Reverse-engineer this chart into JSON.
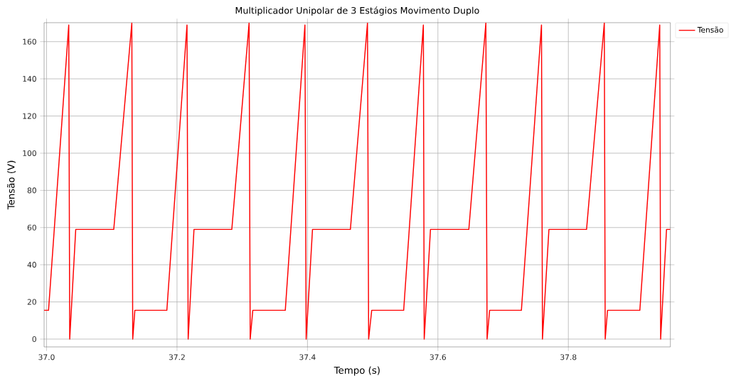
{
  "chart_data": {
    "type": "line",
    "title": "Multiplicador Unipolar de 3 Estágios Movimento Duplo",
    "xlabel": "Tempo (s)",
    "ylabel": "Tensão (V)",
    "x": [
      36.9962,
      37.003,
      37.034,
      37.0355,
      37.0447,
      37.103,
      37.1307,
      37.1321,
      37.1354,
      37.1844,
      37.2153,
      37.2171,
      37.226,
      37.284,
      37.3105,
      37.3122,
      37.3162,
      37.366,
      37.3961,
      37.398,
      37.4077,
      37.4658,
      37.492,
      37.4938,
      37.4985,
      37.5475,
      37.5777,
      37.579,
      37.5886,
      37.6474,
      37.6735,
      37.6754,
      37.6793,
      37.728,
      37.7588,
      37.7603,
      37.7702,
      37.8279,
      37.8551,
      37.8565,
      37.8601,
      37.9096,
      37.9401,
      37.9415,
      37.9505,
      37.9564
    ],
    "series": [
      {
        "name": "Tensão",
        "color": "#ff0000",
        "values": [
          15.5,
          15.5,
          169,
          0,
          59,
          59,
          170,
          0,
          15.5,
          15.5,
          169,
          0,
          59,
          59,
          170,
          0,
          15.5,
          15.5,
          169,
          0,
          59,
          59,
          170,
          0,
          15.5,
          15.5,
          169,
          0,
          59,
          59,
          170,
          0,
          15.5,
          15.5,
          169,
          0,
          59,
          59,
          170,
          0,
          15.5,
          15.5,
          169,
          0,
          59,
          59
        ]
      }
    ],
    "xlim": [
      36.9962,
      37.9564
    ],
    "ylim": [
      -4.2,
      170.2
    ],
    "xticks": [
      {
        "value": 37.0,
        "label": "37.0"
      },
      {
        "value": 37.2,
        "label": "37.2"
      },
      {
        "value": 37.4,
        "label": "37.4"
      },
      {
        "value": 37.6,
        "label": "37.6"
      },
      {
        "value": 37.8,
        "label": "37.8"
      }
    ],
    "yticks": [
      0,
      20,
      40,
      60,
      80,
      100,
      120,
      140,
      160
    ],
    "grid": true,
    "legend": "top right",
    "marker": "none",
    "line_style": "solid"
  }
}
